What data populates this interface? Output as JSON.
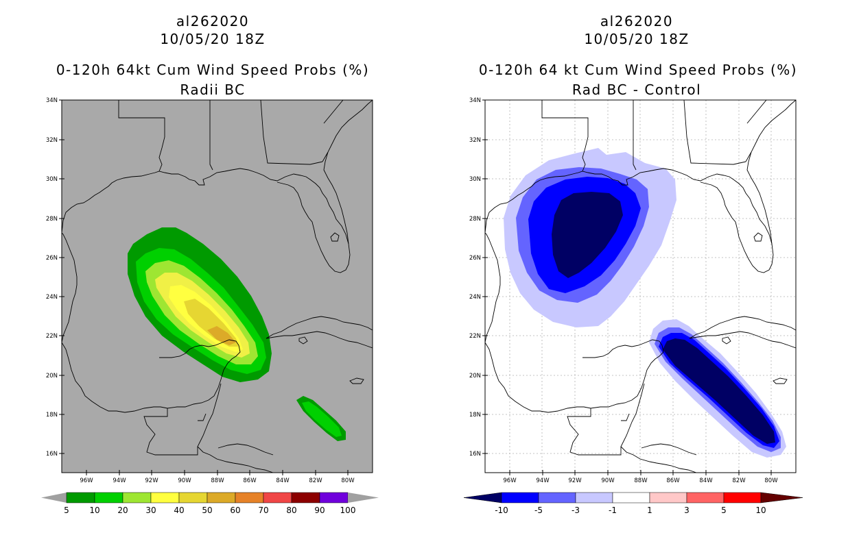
{
  "left": {
    "storm_id": "al262020",
    "date": "10/05/20 18Z",
    "title": "0-120h 64kt Cum Wind Speed Probs (%)",
    "subtitle": "Radii BC",
    "colorbar": {
      "labels": [
        "5",
        "10",
        "20",
        "30",
        "40",
        "50",
        "60",
        "70",
        "80",
        "90",
        "100"
      ],
      "colors": [
        "#009a00",
        "#00d000",
        "#9ee632",
        "#ffff40",
        "#e6d632",
        "#dcaa28",
        "#e68228",
        "#f04646",
        "#8c0000",
        "#7000dc"
      ],
      "extend_color": "#a0a0a0"
    }
  },
  "right": {
    "storm_id": "al262020",
    "date": "10/05/20 18Z",
    "title": "0-120h 64 kt Cum Wind Speed Probs (%)",
    "subtitle": "Rad BC - Control",
    "colorbar": {
      "labels": [
        "-10",
        "-5",
        "-3",
        "-1",
        "1",
        "3",
        "5",
        "10"
      ],
      "colors": [
        "#0000ff",
        "#6464ff",
        "#c8c8ff",
        "#ffffff",
        "#ffc8c8",
        "#ff6464",
        "#ff0000"
      ],
      "low_extend_color": "#000064",
      "high_extend_color": "#640000"
    }
  },
  "map": {
    "lat_labels": [
      "34N",
      "32N",
      "30N",
      "28N",
      "26N",
      "24N",
      "22N",
      "20N",
      "18N",
      "16N"
    ],
    "lon_labels": [
      "96W",
      "94W",
      "92W",
      "90W",
      "88W",
      "86W",
      "84W",
      "82W",
      "80W"
    ],
    "ocean_color_left": "#a9a9a9",
    "ocean_color_right": "#ffffff"
  },
  "chart_data": [
    {
      "type": "filled-contour-map",
      "title": "0-120h 64kt Cum Wind Speed Probs (%)",
      "subtitle": "Radii BC",
      "units": "%",
      "levels": [
        5,
        10,
        20,
        30,
        40,
        50,
        60,
        70,
        80,
        90,
        100
      ],
      "xlim": [
        "98W",
        "79W"
      ],
      "ylim": [
        "15N",
        "34N"
      ],
      "max_value_range": [
        50,
        60
      ],
      "max_location": {
        "lat": 22,
        "lon": -87.5
      }
    },
    {
      "type": "filled-contour-map",
      "title": "0-120h 64 kt Cum Wind Speed Probs (%)",
      "subtitle": "Rad BC - Control",
      "units": "%",
      "levels": [
        -10,
        -5,
        -3,
        -1,
        1,
        3,
        5,
        10
      ],
      "xlim": [
        "98W",
        "79W"
      ],
      "ylim": [
        "15N",
        "34N"
      ],
      "negative_max_location": {
        "lat": 27,
        "lon": -91.5
      },
      "second_negative_max_location": {
        "lat": 18.5,
        "lon": -83
      }
    }
  ]
}
